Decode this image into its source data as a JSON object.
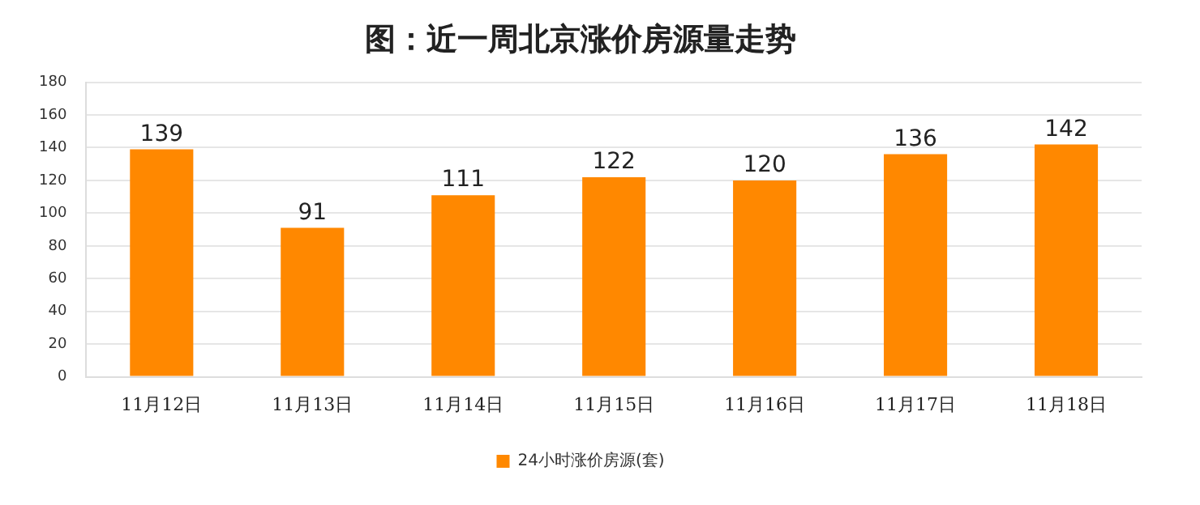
{
  "chart_data": {
    "type": "bar",
    "title": "图：近一周北京涨价房源量走势",
    "categories": [
      "11月12日",
      "11月13日",
      "11月14日",
      "11月15日",
      "11月16日",
      "11月17日",
      "11月18日"
    ],
    "series": [
      {
        "name": "24小时涨价房源(套)",
        "color": "#ff8800",
        "values": [
          139,
          91,
          111,
          122,
          120,
          136,
          142
        ]
      }
    ],
    "ylim": [
      0,
      180
    ],
    "yticks": [
      0,
      20,
      40,
      60,
      80,
      100,
      120,
      140,
      160,
      180
    ],
    "grid": "y",
    "legend": "bottom",
    "data_labels": true
  }
}
